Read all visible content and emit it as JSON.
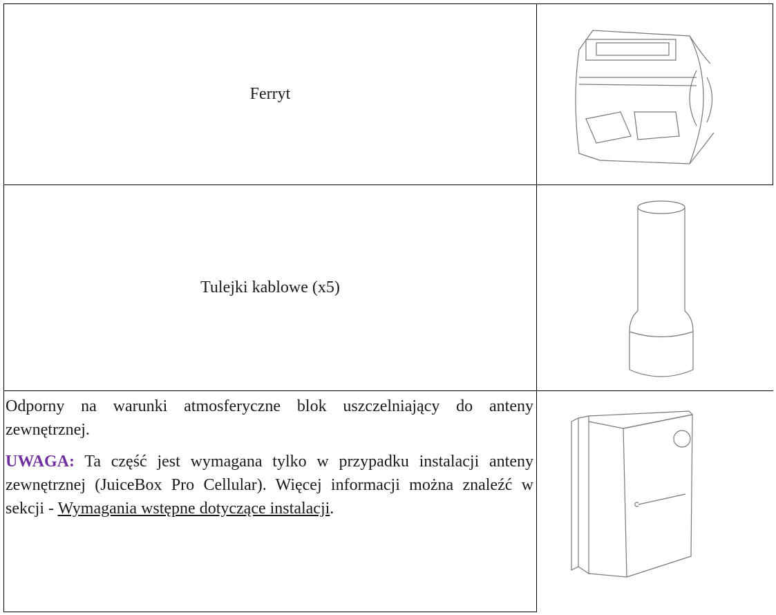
{
  "table": {
    "rows": [
      {
        "label": "Ferryt"
      },
      {
        "label": "Tulejki kablowe (x5)"
      },
      {
        "description": "Odporny na warunki atmosferyczne blok uszczelniający do anteny zewnętrznej.",
        "note_label": "UWAGA:",
        "note_text": "Ta część jest wymagana tylko w przypadku instalacji anteny zewnętrznej (JuiceBox Pro Cellular). Więcej informacji można znaleźć w sekcji -",
        "note_link": "Wymagania wstępne dotyczące instalacji",
        "note_end": "."
      }
    ]
  }
}
